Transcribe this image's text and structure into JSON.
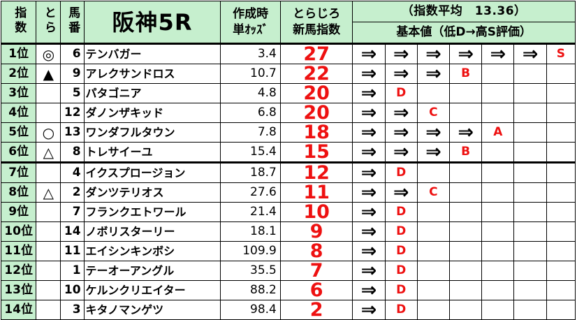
{
  "header": {
    "col_rank": "指数",
    "col_tora": "とら",
    "col_umaban": "馬番",
    "race_title": "阪神5R",
    "col_odds_line1": "作成時",
    "col_odds_line2": "単ｵｯｽﾞ",
    "col_score_line1": "とらじろ",
    "col_score_line2": "新馬指数",
    "avg_text": "（指数平均　13.36）",
    "basis_text": "基本値（低D→高S評価）"
  },
  "rows": [
    {
      "rank": "1位",
      "mark": "◎",
      "umaban": "6",
      "name": "テンバガー",
      "odds": "3.4",
      "score": "27",
      "arrows": 6,
      "grade": "S"
    },
    {
      "rank": "2位",
      "mark": "▲",
      "umaban": "9",
      "name": "アレクサンドロス",
      "odds": "10.7",
      "score": "22",
      "arrows": 3,
      "grade": "B"
    },
    {
      "rank": "3位",
      "mark": "",
      "umaban": "5",
      "name": "パタゴニア",
      "odds": "4.8",
      "score": "20",
      "arrows": 1,
      "grade": "D"
    },
    {
      "rank": "4位",
      "mark": "",
      "umaban": "12",
      "name": "ダノンザキッド",
      "odds": "6.8",
      "score": "20",
      "arrows": 2,
      "grade": "C"
    },
    {
      "rank": "5位",
      "mark": "○",
      "umaban": "13",
      "name": "ワンダフルタウン",
      "odds": "7.8",
      "score": "18",
      "arrows": 4,
      "grade": "A"
    },
    {
      "rank": "6位",
      "mark": "△",
      "umaban": "8",
      "name": "トレサイーユ",
      "odds": "15.4",
      "score": "15",
      "arrows": 3,
      "grade": "B"
    },
    {
      "rank": "7位",
      "mark": "",
      "umaban": "4",
      "name": "イクスプロージョン",
      "odds": "18.7",
      "score": "12",
      "arrows": 1,
      "grade": "D"
    },
    {
      "rank": "8位",
      "mark": "△",
      "umaban": "2",
      "name": "ダンツテリオス",
      "odds": "27.6",
      "score": "11",
      "arrows": 2,
      "grade": "C"
    },
    {
      "rank": "9位",
      "mark": "",
      "umaban": "7",
      "name": "フランクエトワール",
      "odds": "21.4",
      "score": "10",
      "arrows": 1,
      "grade": "D"
    },
    {
      "rank": "10位",
      "mark": "",
      "umaban": "14",
      "name": "ノボリスターリー",
      "odds": "18.1",
      "score": "9",
      "arrows": 1,
      "grade": "D"
    },
    {
      "rank": "11位",
      "mark": "",
      "umaban": "11",
      "name": "エイシンキンボシ",
      "odds": "109.9",
      "score": "8",
      "arrows": 1,
      "grade": "D"
    },
    {
      "rank": "12位",
      "mark": "",
      "umaban": "1",
      "name": "テーオーアングル",
      "odds": "35.5",
      "score": "7",
      "arrows": 1,
      "grade": "D"
    },
    {
      "rank": "13位",
      "mark": "",
      "umaban": "10",
      "name": "ケルンクリエイター",
      "odds": "88.2",
      "score": "6",
      "arrows": 1,
      "grade": "D"
    },
    {
      "rank": "14位",
      "mark": "",
      "umaban": "3",
      "name": "キタノマンゲツ",
      "odds": "98.4",
      "score": "2",
      "arrows": 1,
      "grade": "D"
    }
  ],
  "arrow_glyph": "⇒",
  "colors": {
    "header_bg": "#c6efce",
    "score": "#ee1111",
    "grade": "#ee1111"
  }
}
